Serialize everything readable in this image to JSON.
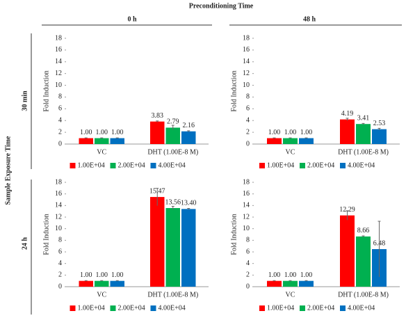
{
  "header": {
    "title": "Preconditioning Time",
    "columns": [
      "0 h",
      "48 h"
    ],
    "row_title": "Sample Exposure Time",
    "rows": [
      "30 min",
      "24 h"
    ]
  },
  "chart_data": [
    {
      "type": "bar",
      "y_label": "Fold Induction",
      "categories": [
        "VC",
        "DHT (1.00E-8 M)"
      ],
      "ylim": [
        0,
        18
      ],
      "yticks": [
        0,
        2,
        4,
        6,
        8,
        10,
        12,
        14,
        16,
        18
      ],
      "legend": "bottom",
      "series": [
        {
          "name": "1.00E+04",
          "color": "#ff0000",
          "values": [
            1,
            3.83
          ],
          "value_labels": [
            "1.00",
            "3.83"
          ],
          "errors": [
            0.05,
            0.1
          ]
        },
        {
          "name": "2.00E+04",
          "color": "#00b050",
          "values": [
            1,
            2.79
          ],
          "value_labels": [
            "1.00",
            "2.79"
          ],
          "errors": [
            0.05,
            0.4
          ]
        },
        {
          "name": "4.00E+04",
          "color": "#0070c0",
          "values": [
            1,
            2.16
          ],
          "value_labels": [
            "1.00",
            "2.16"
          ],
          "errors": [
            0.05,
            0.1
          ]
        }
      ]
    },
    {
      "type": "bar",
      "y_label": "Fold Induction",
      "categories": [
        "VC",
        "DHT (1.00E-8 M)"
      ],
      "ylim": [
        0,
        18
      ],
      "yticks": [
        0,
        2,
        4,
        6,
        8,
        10,
        12,
        14,
        16,
        18
      ],
      "legend": "bottom",
      "series": [
        {
          "name": "1.00E+04",
          "color": "#ff0000",
          "values": [
            1,
            4.19
          ],
          "value_labels": [
            "1.00",
            "4.19"
          ],
          "errors": [
            0.05,
            0.2
          ]
        },
        {
          "name": "2.00E+04",
          "color": "#00b050",
          "values": [
            1,
            3.41
          ],
          "value_labels": [
            "1.00",
            "3.41"
          ],
          "errors": [
            0.05,
            0.1
          ]
        },
        {
          "name": "4.00E+04",
          "color": "#0070c0",
          "values": [
            1,
            2.53
          ],
          "value_labels": [
            "1.00",
            "2.53"
          ],
          "errors": [
            0.05,
            0.15
          ]
        }
      ]
    },
    {
      "type": "bar",
      "y_label": "Fold Induction",
      "categories": [
        "VC",
        "DHT (1.00E-8 M)"
      ],
      "ylim": [
        0,
        18
      ],
      "yticks": [
        0,
        2,
        4,
        6,
        8,
        10,
        12,
        14,
        16,
        18
      ],
      "legend": "bottom",
      "series": [
        {
          "name": "1.00E+04",
          "color": "#ff0000",
          "values": [
            1,
            15.47
          ],
          "value_labels": [
            "1.00",
            "15.47"
          ],
          "errors": [
            0.05,
            1.5
          ]
        },
        {
          "name": "2.00E+04",
          "color": "#00b050",
          "values": [
            1,
            13.56
          ],
          "value_labels": [
            "1.00",
            "13.56"
          ],
          "errors": [
            0.05,
            0.3
          ]
        },
        {
          "name": "4.00E+04",
          "color": "#0070c0",
          "values": [
            1,
            13.4
          ],
          "value_labels": [
            "1.00",
            "13.40"
          ],
          "errors": [
            0.05,
            0.1
          ]
        }
      ]
    },
    {
      "type": "bar",
      "y_label": "Fold Induction",
      "categories": [
        "VC",
        "DHT (1.00E-8 M)"
      ],
      "ylim": [
        0,
        18
      ],
      "yticks": [
        0,
        2,
        4,
        6,
        8,
        10,
        12,
        14,
        16,
        18
      ],
      "legend": "bottom",
      "series": [
        {
          "name": "1.00E+04",
          "color": "#ff0000",
          "values": [
            1,
            12.29
          ],
          "value_labels": [
            "1.00",
            "12.29"
          ],
          "errors": [
            0.05,
            0.8
          ]
        },
        {
          "name": "2.00E+04",
          "color": "#00b050",
          "values": [
            1,
            8.66
          ],
          "value_labels": [
            "1.00",
            "8.66"
          ],
          "errors": [
            0.05,
            0.1
          ]
        },
        {
          "name": "4.00E+04",
          "color": "#0070c0",
          "values": [
            1,
            6.48
          ],
          "value_labels": [
            "1.00",
            "6.48"
          ],
          "errors": [
            0.05,
            4.8
          ]
        }
      ]
    }
  ]
}
